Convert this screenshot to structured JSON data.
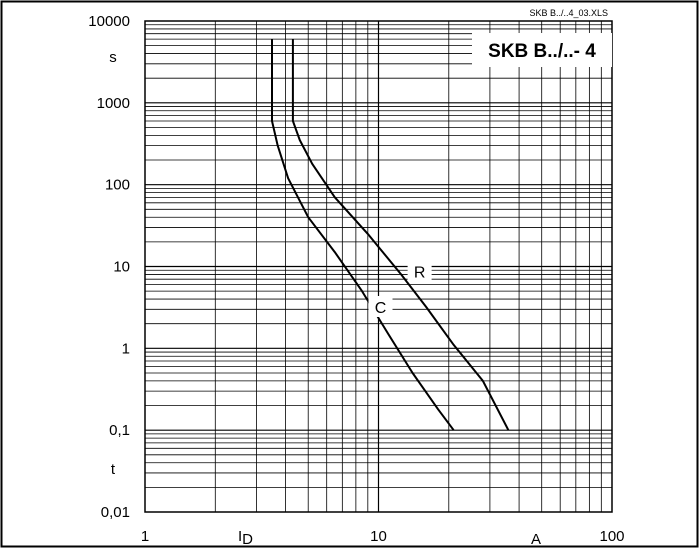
{
  "chart_data": {
    "type": "line",
    "title": "SKB B../..- 4",
    "file_label": "SKB B../..4_03.XLS",
    "x_scale": "log",
    "y_scale": "log",
    "xlim": [
      1,
      100
    ],
    "ylim": [
      0.01,
      10000
    ],
    "x_ticks": [
      {
        "value": 1,
        "label": "1"
      },
      {
        "value": 10,
        "label": "10"
      },
      {
        "value": 100,
        "label": "100"
      }
    ],
    "y_ticks": [
      {
        "value": 10000,
        "label": "10000"
      },
      {
        "value": 1000,
        "label": "1000"
      },
      {
        "value": 100,
        "label": "100"
      },
      {
        "value": 10,
        "label": "10"
      },
      {
        "value": 1,
        "label": "1"
      },
      {
        "value": 0.1,
        "label": "0,1"
      },
      {
        "value": 0.01,
        "label": "0,01"
      }
    ],
    "x_unit_label": "A",
    "x_var_label": {
      "main": "I",
      "sub": "D"
    },
    "y_unit_label": "s",
    "y_var_label": "t",
    "grid": true,
    "series": [
      {
        "name": "C",
        "points": [
          [
            3.5,
            6000
          ],
          [
            3.5,
            600
          ],
          [
            3.7,
            300
          ],
          [
            4.1,
            120
          ],
          [
            5.0,
            40
          ],
          [
            6.5,
            15
          ],
          [
            8.5,
            5
          ],
          [
            11.0,
            1.5
          ],
          [
            14.0,
            0.5
          ],
          [
            18.0,
            0.18
          ],
          [
            21.0,
            0.1
          ]
        ],
        "label_at": [
          10.2,
          3.2
        ]
      },
      {
        "name": "R",
        "points": [
          [
            4.3,
            6000
          ],
          [
            4.3,
            600
          ],
          [
            4.6,
            350
          ],
          [
            5.2,
            180
          ],
          [
            6.5,
            70
          ],
          [
            9.0,
            25
          ],
          [
            12.5,
            8
          ],
          [
            16.0,
            3.2
          ],
          [
            21.0,
            1.1
          ],
          [
            28.0,
            0.4
          ],
          [
            36.0,
            0.1
          ]
        ],
        "label_at": [
          15.0,
          8.7
        ]
      }
    ]
  }
}
